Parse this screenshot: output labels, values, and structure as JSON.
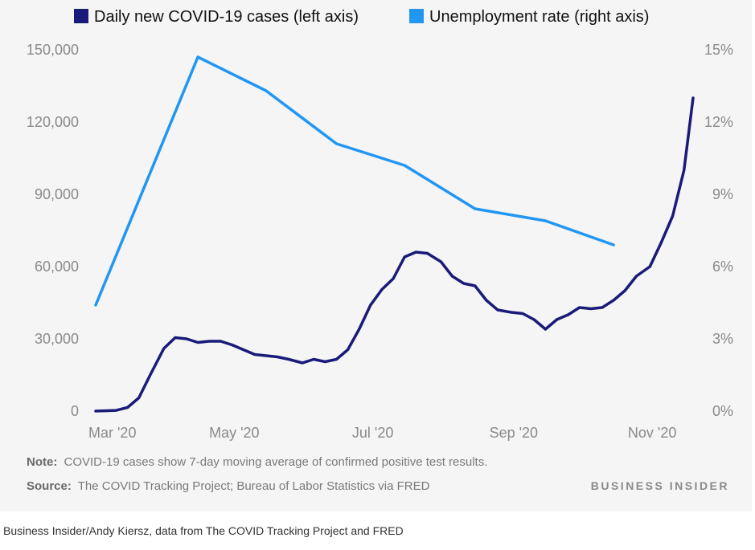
{
  "chart_data": {
    "type": "line",
    "legend": {
      "placement": "top",
      "cases_label": "Daily new COVID-19 cases (left axis)",
      "unemployment_label": "Unemployment rate (right axis)"
    },
    "x_ticks": [
      "Mar '20",
      "May '20",
      "Jul '20",
      "Sep '20",
      "Nov '20"
    ],
    "x_range": [
      "2020-03-01",
      "2020-11-19"
    ],
    "y_left": {
      "range": [
        0,
        150000
      ],
      "ticks": [
        "0",
        "30,000",
        "60,000",
        "90,000",
        "120,000",
        "150,000"
      ]
    },
    "y_right": {
      "range": [
        0,
        15
      ],
      "ticks": [
        "0%",
        "3%",
        "6%",
        "9%",
        "12%",
        "15%"
      ]
    },
    "grid": false,
    "series": [
      {
        "name": "Daily new COVID-19 cases (left axis)",
        "axis": "left",
        "color": "#1a1a7a",
        "x": [
          "2020-03-01",
          "2020-03-10",
          "2020-03-15",
          "2020-03-20",
          "2020-03-25",
          "2020-03-31",
          "2020-04-05",
          "2020-04-10",
          "2020-04-15",
          "2020-04-20",
          "2020-04-25",
          "2020-04-30",
          "2020-05-05",
          "2020-05-10",
          "2020-05-15",
          "2020-05-20",
          "2020-05-25",
          "2020-05-31",
          "2020-06-05",
          "2020-06-10",
          "2020-06-15",
          "2020-06-20",
          "2020-06-25",
          "2020-06-30",
          "2020-07-05",
          "2020-07-10",
          "2020-07-15",
          "2020-07-20",
          "2020-07-25",
          "2020-07-31",
          "2020-08-05",
          "2020-08-10",
          "2020-08-15",
          "2020-08-20",
          "2020-08-25",
          "2020-08-31",
          "2020-09-05",
          "2020-09-10",
          "2020-09-15",
          "2020-09-20",
          "2020-09-25",
          "2020-09-30",
          "2020-10-05",
          "2020-10-10",
          "2020-10-15",
          "2020-10-20",
          "2020-10-25",
          "2020-10-31",
          "2020-11-05",
          "2020-11-10",
          "2020-11-15",
          "2020-11-19"
        ],
        "values": [
          0,
          300,
          1500,
          5500,
          15000,
          26000,
          30500,
          30000,
          28500,
          29000,
          29000,
          27500,
          25500,
          23500,
          23000,
          22500,
          21500,
          20000,
          21500,
          20500,
          21500,
          25500,
          34000,
          44000,
          50500,
          55000,
          64000,
          66000,
          65500,
          62000,
          56000,
          53000,
          52000,
          46000,
          42000,
          41000,
          40500,
          38000,
          34000,
          38000,
          40000,
          43000,
          42500,
          43000,
          46000,
          50000,
          56000,
          60000,
          70000,
          81000,
          100000,
          130000
        ]
      },
      {
        "name": "Unemployment rate (right axis)",
        "axis": "right",
        "color": "#2196f3",
        "x": [
          "2020-03-01",
          "2020-04-15",
          "2020-05-15",
          "2020-06-15",
          "2020-07-15",
          "2020-08-15",
          "2020-09-15",
          "2020-10-15"
        ],
        "values": [
          4.4,
          14.7,
          13.3,
          11.1,
          10.2,
          8.4,
          7.9,
          6.9
        ]
      }
    ]
  },
  "footnotes": {
    "note_label": "Note:",
    "note_text": "COVID-19 cases show 7-day moving average of confirmed positive test results.",
    "source_label": "Source:",
    "source_text": "The COVID Tracking Project; Bureau of Labor Statistics via FRED",
    "brand": "BUSINESS INSIDER"
  },
  "caption": "Business Insider/Andy Kiersz, data from The COVID Tracking Project and FRED"
}
